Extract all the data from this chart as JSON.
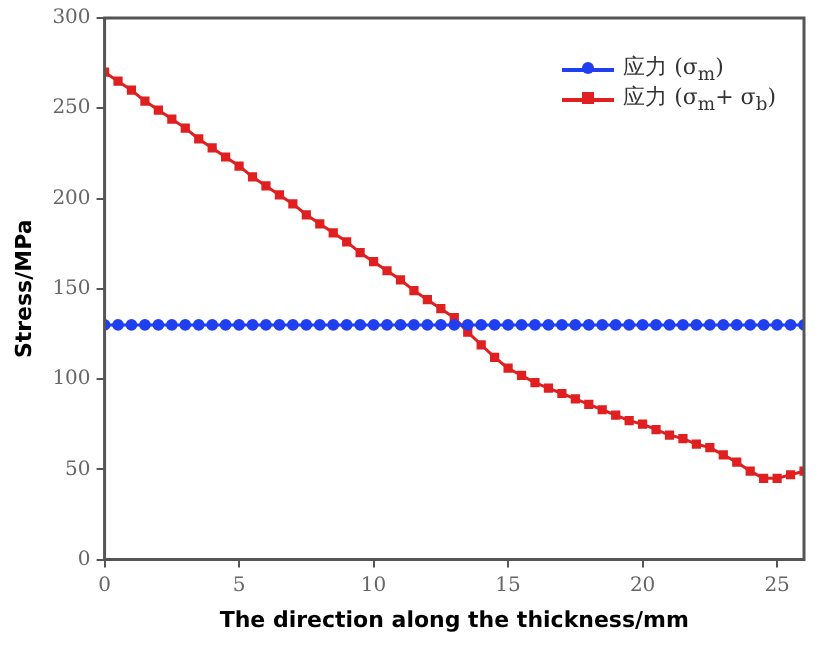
{
  "chart_data": {
    "type": "line",
    "xlabel": "The direction along the thickness/mm",
    "ylabel": "Stress/MPa",
    "x": [
      0,
      0.5,
      1,
      1.5,
      2,
      2.5,
      3,
      3.5,
      4,
      4.5,
      5,
      5.5,
      6,
      6.5,
      7,
      7.5,
      8,
      8.5,
      9,
      9.5,
      10,
      10.5,
      11,
      11.5,
      12,
      12.5,
      13,
      13.5,
      14,
      14.5,
      15,
      15.5,
      16,
      16.5,
      17,
      17.5,
      18,
      18.5,
      19,
      19.5,
      20,
      20.5,
      21,
      21.5,
      22,
      22.5,
      23,
      23.5,
      24,
      24.5,
      25,
      25.5,
      26
    ],
    "series": [
      {
        "name": "应力 (σ$_{m}$)",
        "color": "#1f3ff0",
        "marker": "circle",
        "values": [
          130,
          130,
          130,
          130,
          130,
          130,
          130,
          130,
          130,
          130,
          130,
          130,
          130,
          130,
          130,
          130,
          130,
          130,
          130,
          130,
          130,
          130,
          130,
          130,
          130,
          130,
          130,
          130,
          130,
          130,
          130,
          130,
          130,
          130,
          130,
          130,
          130,
          130,
          130,
          130,
          130,
          130,
          130,
          130,
          130,
          130,
          130,
          130,
          130,
          130,
          130,
          130,
          130
        ]
      },
      {
        "name": "应力 (σ$_{m}$+ σ$_{b}$)",
        "color": "#e02020",
        "marker": "square",
        "values": [
          270,
          265,
          260,
          254,
          249,
          244,
          239,
          233,
          228,
          223,
          218,
          212,
          207,
          202,
          197,
          191,
          186,
          181,
          176,
          170,
          165,
          160,
          155,
          149,
          144,
          139,
          134,
          126,
          119,
          112,
          106,
          102,
          98,
          95,
          92,
          89,
          86,
          83,
          80,
          77,
          75,
          72,
          69,
          67,
          64,
          62,
          58,
          54,
          49,
          45,
          45,
          47,
          49
        ]
      }
    ],
    "xlim": [
      0,
      26
    ],
    "xticks": [
      0,
      5,
      10,
      15,
      20,
      25
    ],
    "ylim": [
      0,
      300
    ],
    "yticks": [
      0,
      50,
      100,
      150,
      200,
      250,
      300
    ],
    "grid": false,
    "legend": "top right"
  }
}
